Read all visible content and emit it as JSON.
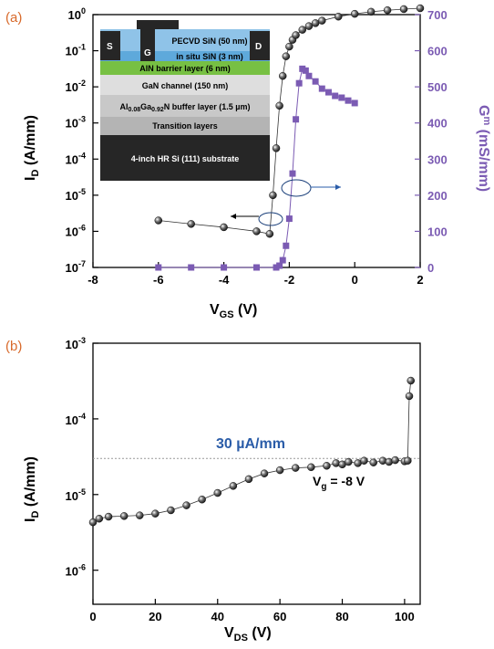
{
  "colors": {
    "accent_orange": "#d86a2b",
    "accent_purple": "#7b5bb3",
    "accent_blue": "#2a5ca8",
    "marker_dark": "#1b1b1b",
    "layer_pecvd": "#8fc3e8",
    "layer_insitu": "#5ea9db",
    "layer_aln": "#77c043",
    "layer_gan": "#dedede",
    "layer_buffer": "#c8c8c8",
    "layer_transition": "#b4b4b4",
    "layer_substrate": "#262626"
  },
  "chart_data": [
    {
      "type": "scatter",
      "panel_label": "(a)",
      "xlabel_main": "V",
      "xlabel_sub": "GS",
      "xlabel_unit": " (V)",
      "ylabel_main": "I",
      "ylabel_sub": "D",
      "ylabel_unit": " (A/mm)",
      "y2label_main": "G",
      "y2label_sub": "m",
      "y2label_unit": " (mS/mm)",
      "xlim": [
        -8,
        2
      ],
      "x_ticks": [
        "-8",
        "-6",
        "-4",
        "-2",
        "0",
        "2"
      ],
      "x_tick_values": [
        -8,
        -6,
        -4,
        -2,
        0,
        2
      ],
      "ylim_log": [
        -7,
        0
      ],
      "y_tick_base": "10",
      "y_tick_exps": [
        "0",
        "-1",
        "-2",
        "-3",
        "-4",
        "-5",
        "-6",
        "-7"
      ],
      "y2lim": [
        0,
        700
      ],
      "y2_ticks": [
        "0",
        "100",
        "200",
        "300",
        "400",
        "500",
        "600",
        "700"
      ],
      "grid": false,
      "series": [
        {
          "axis": "left",
          "marker": "sphere",
          "x": [
            -6.0,
            -5.0,
            -4.0,
            -3.0,
            -2.6,
            -2.5,
            -2.4,
            -2.3,
            -2.2,
            -2.1,
            -2.0,
            -1.9,
            -1.8,
            -1.6,
            -1.4,
            -1.2,
            -1.0,
            -0.5,
            0.0,
            0.5,
            1.0,
            1.5,
            2.0
          ],
          "y": [
            2e-06,
            1.6e-06,
            1.3e-06,
            1e-06,
            8.5e-07,
            1e-05,
            0.0002,
            0.003,
            0.02,
            0.07,
            0.13,
            0.2,
            0.27,
            0.38,
            0.48,
            0.58,
            0.68,
            0.88,
            1.05,
            1.2,
            1.32,
            1.42,
            1.5
          ]
        },
        {
          "axis": "right",
          "marker": "square",
          "x": [
            -6.0,
            -5.0,
            -4.0,
            -3.0,
            -2.4,
            -2.3,
            -2.2,
            -2.1,
            -2.0,
            -1.9,
            -1.8,
            -1.7,
            -1.6,
            -1.5,
            -1.4,
            -1.2,
            -1.0,
            -0.8,
            -0.6,
            -0.4,
            -0.2,
            0.0
          ],
          "y": [
            0,
            0,
            0,
            0,
            0,
            5,
            20,
            60,
            135,
            260,
            410,
            510,
            550,
            545,
            530,
            515,
            495,
            485,
            475,
            470,
            462,
            455
          ]
        }
      ]
    },
    {
      "type": "scatter",
      "panel_label": "(b)",
      "xlabel_main": "V",
      "xlabel_sub": "DS",
      "xlabel_unit": " (V)",
      "ylabel_main": "I",
      "ylabel_sub": "D",
      "ylabel_unit": " (A/mm)",
      "xlim": [
        0,
        105
      ],
      "x_ticks": [
        "0",
        "20",
        "40",
        "60",
        "80",
        "100"
      ],
      "x_tick_values": [
        0,
        20,
        40,
        60,
        80,
        100
      ],
      "ylim_log": [
        -6.45,
        -3
      ],
      "y_tick_base": "10",
      "y_tick_exps": [
        "-3",
        "-4",
        "-5",
        "-6"
      ],
      "grid": false,
      "reference_line": {
        "value": 3e-05,
        "label": "30 µA/mm",
        "style": "dotted"
      },
      "series": [
        {
          "marker": "sphere",
          "x": [
            0,
            2,
            5,
            10,
            15,
            20,
            25,
            30,
            35,
            40,
            45,
            50,
            55,
            60,
            65,
            70,
            75,
            78,
            80,
            82,
            85,
            87,
            90,
            93,
            95,
            97,
            100,
            101,
            101.5,
            102
          ],
          "y": [
            4.3e-06,
            4.8e-06,
            5.1e-06,
            5.2e-06,
            5.3e-06,
            5.6e-06,
            6.2e-06,
            7.2e-06,
            8.6e-06,
            1.05e-05,
            1.3e-05,
            1.6e-05,
            1.9e-05,
            2.1e-05,
            2.25e-05,
            2.3e-05,
            2.4e-05,
            2.6e-05,
            2.5e-05,
            2.7e-05,
            2.6e-05,
            2.8e-05,
            2.65e-05,
            2.8e-05,
            2.7e-05,
            2.85e-05,
            2.75e-05,
            2.8e-05,
            0.0002,
            0.00032
          ]
        }
      ],
      "annotation": {
        "main": "V",
        "sub": "g",
        "rest": " = -8 V"
      }
    }
  ],
  "inset": {
    "top_label_s": "S",
    "top_label_g": "G",
    "top_label_d": "D",
    "layers": [
      {
        "text": "PECVD SiN (50 nm)"
      },
      {
        "text": "in situ SiN (3 nm)"
      },
      {
        "text": "AlN barrier layer (6 nm)"
      },
      {
        "text": "GaN channel (150 nm)"
      },
      {
        "text_prefix": "Al",
        "sub1": "0.08",
        "text_mid": "Ga",
        "sub2": "0.92",
        "text_suffix": "N buffer layer (1.5 µm)"
      },
      {
        "text": "Transition layers"
      },
      {
        "text": "4-inch HR Si (111) substrate"
      }
    ]
  }
}
